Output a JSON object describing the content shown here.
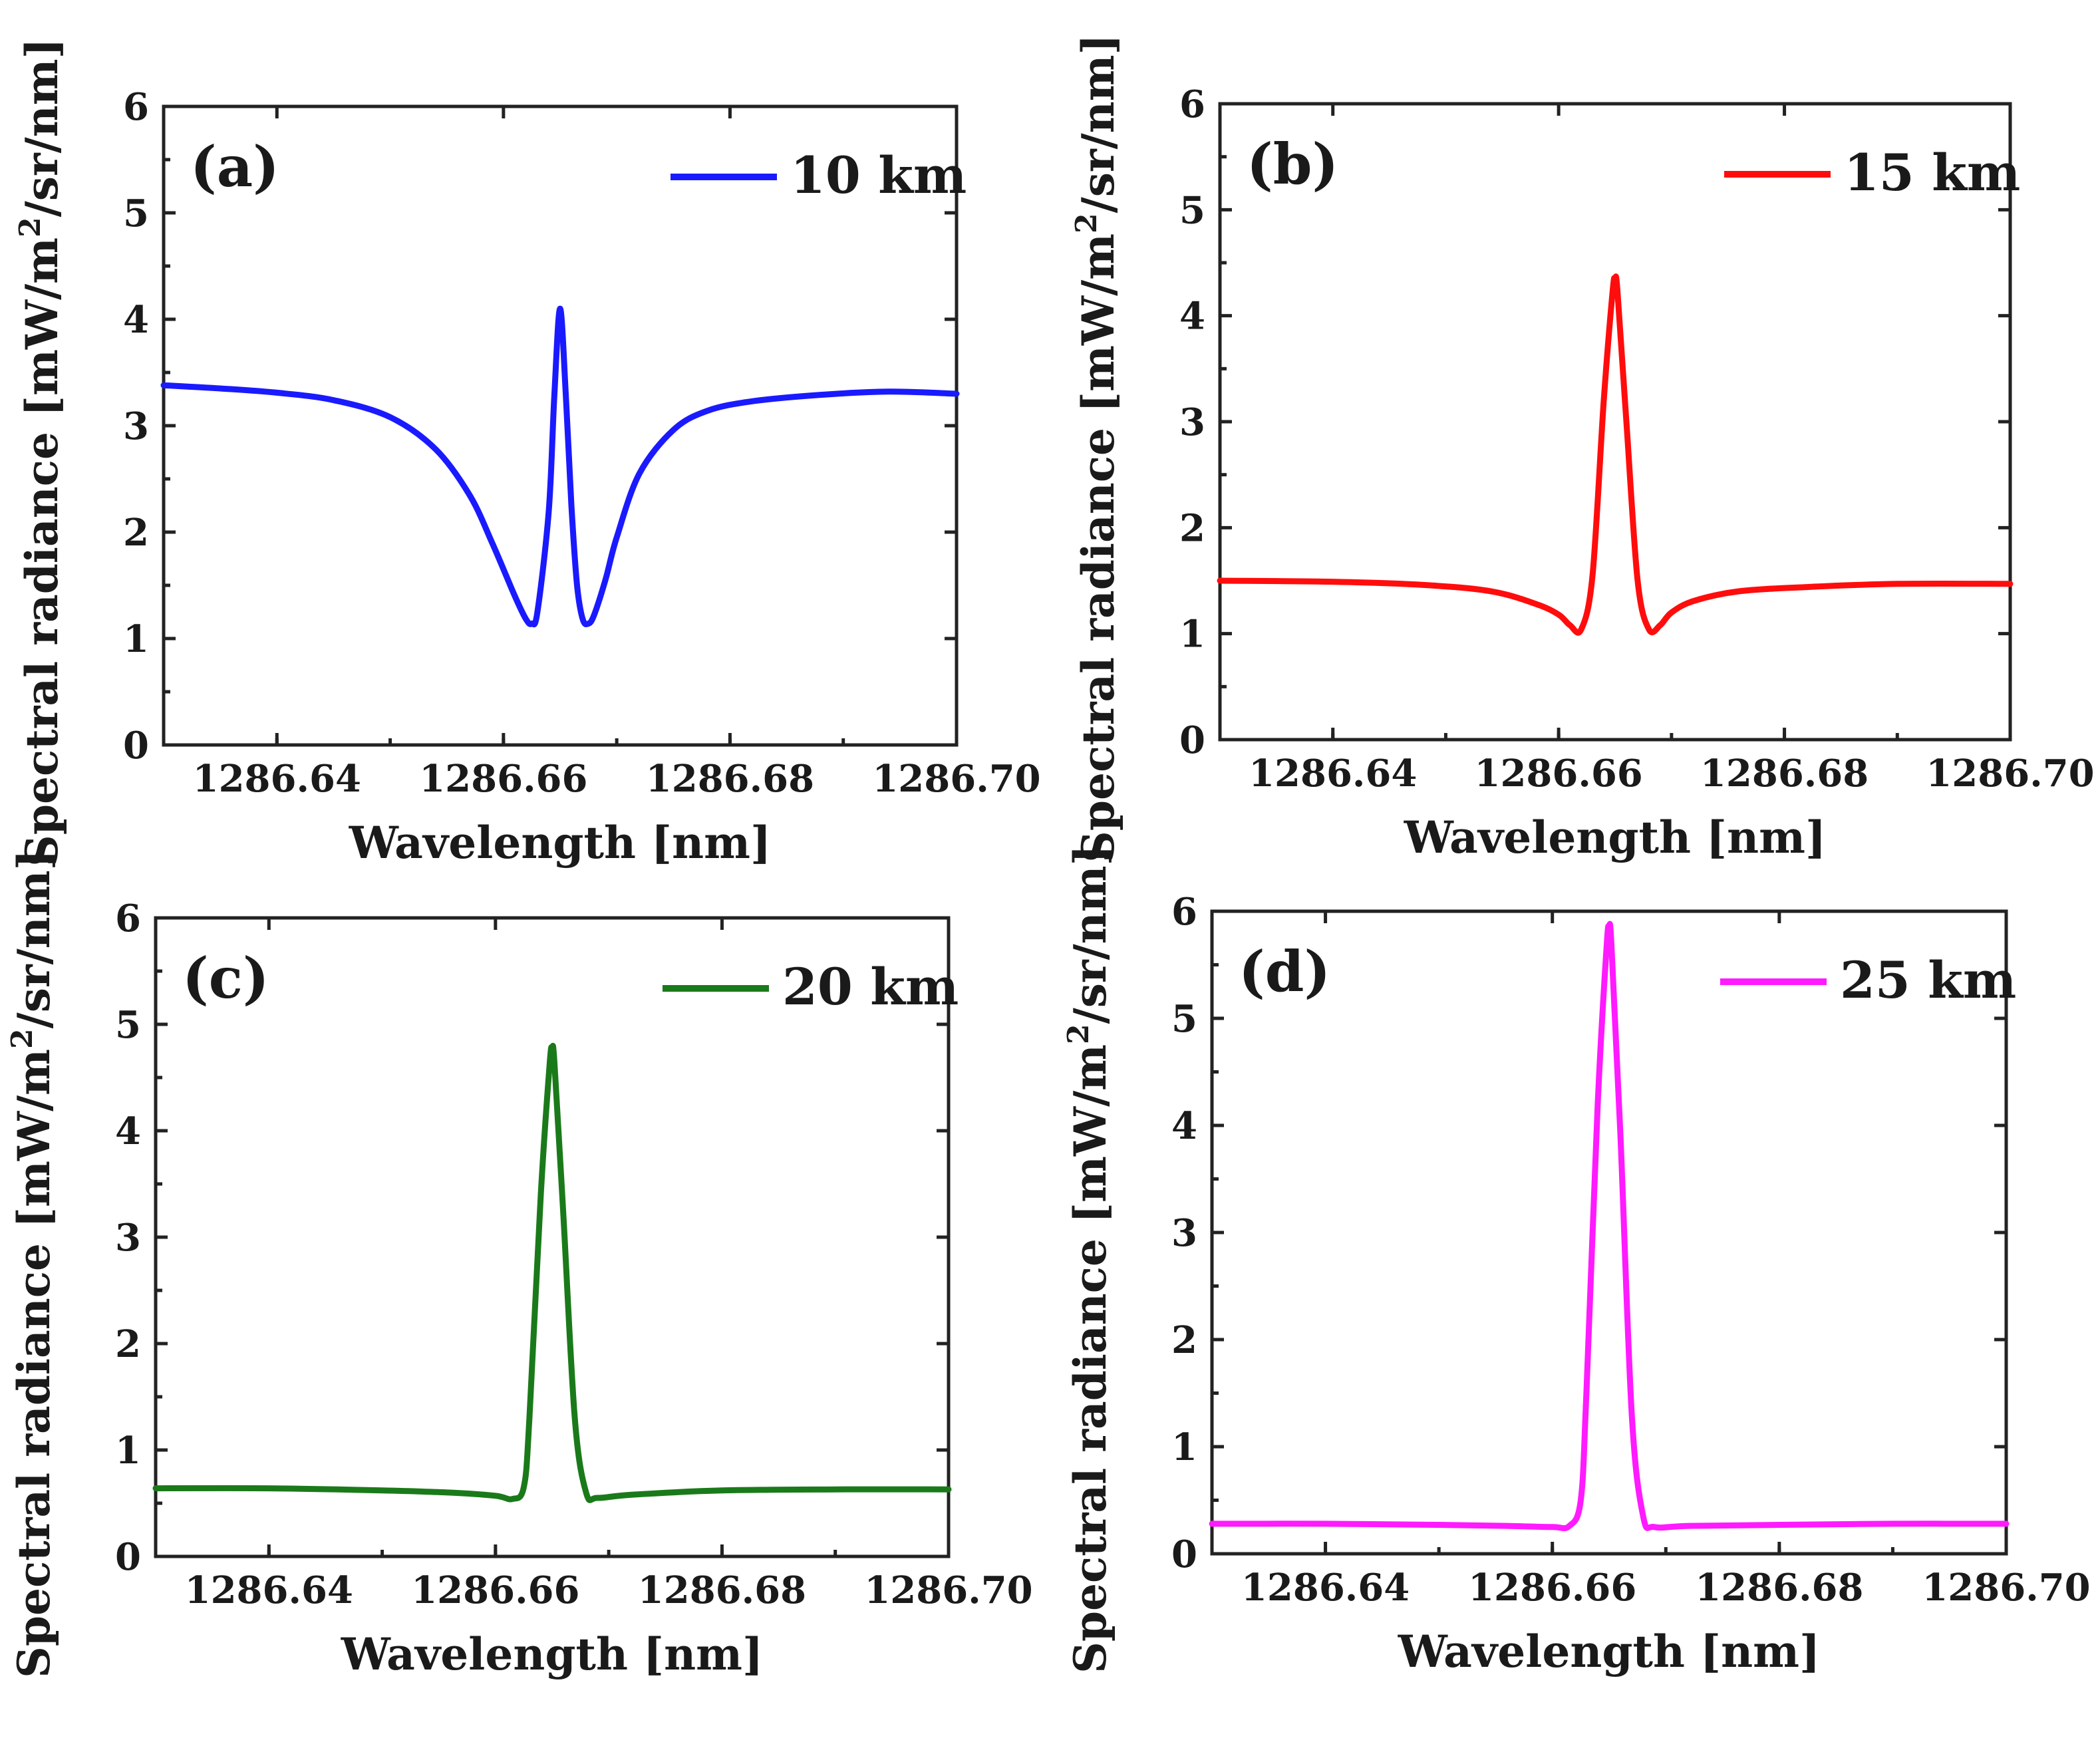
{
  "figure": {
    "panels": [
      "(a)",
      "(b)",
      "(c)",
      "(d)"
    ]
  },
  "chart_data": [
    {
      "type": "line",
      "panel_label": "(a)",
      "title": "",
      "xlabel": "Wavelength [nm]",
      "ylabel_main": "Spectral radiance [mW/m",
      "ylabel_sup": "2",
      "ylabel_tail": "/sr/nm]",
      "xlim": [
        1286.63,
        1286.7
      ],
      "ylim": [
        0,
        6
      ],
      "xticks": [
        "1286.64",
        "1286.66",
        "1286.68",
        "1286.70"
      ],
      "yticks": [
        "0",
        "1",
        "2",
        "3",
        "4",
        "5",
        "6"
      ],
      "legend_position": "top-right",
      "series": [
        {
          "name": "10 km",
          "color": "#1a1aff",
          "x": [
            1286.63,
            1286.635,
            1286.64,
            1286.645,
            1286.65,
            1286.654,
            1286.657,
            1286.659,
            1286.661,
            1286.662,
            1286.6625,
            1286.663,
            1286.664,
            1286.6645,
            1286.665,
            1286.6655,
            1286.666,
            1286.6665,
            1286.667,
            1286.6675,
            1286.668,
            1286.669,
            1286.67,
            1286.672,
            1286.675,
            1286.678,
            1286.682,
            1286.688,
            1286.694,
            1286.7
          ],
          "y": [
            3.38,
            3.35,
            3.31,
            3.24,
            3.08,
            2.78,
            2.35,
            1.9,
            1.4,
            1.18,
            1.14,
            1.25,
            2.2,
            3.3,
            4.1,
            3.3,
            2.25,
            1.5,
            1.18,
            1.14,
            1.22,
            1.55,
            1.95,
            2.55,
            2.96,
            3.14,
            3.23,
            3.29,
            3.32,
            3.3
          ]
        }
      ]
    },
    {
      "type": "line",
      "panel_label": "(b)",
      "title": "",
      "xlabel": "Wavelength [nm]",
      "ylabel_main": "Spectral radiance [mW/m",
      "ylabel_sup": "2",
      "ylabel_tail": "/sr/nm]",
      "xlim": [
        1286.63,
        1286.7
      ],
      "ylim": [
        0,
        6
      ],
      "xticks": [
        "1286.64",
        "1286.66",
        "1286.68",
        "1286.70"
      ],
      "yticks": [
        "0",
        "1",
        "2",
        "3",
        "4",
        "5",
        "6"
      ],
      "legend_position": "top-right",
      "series": [
        {
          "name": "15 km",
          "color": "#ff0d0d",
          "x": [
            1286.63,
            1286.64,
            1286.648,
            1286.654,
            1286.658,
            1286.66,
            1286.661,
            1286.662,
            1286.663,
            1286.664,
            1286.6648,
            1286.665,
            1286.6652,
            1286.666,
            1286.667,
            1286.668,
            1286.669,
            1286.67,
            1286.672,
            1286.676,
            1286.682,
            1286.69,
            1286.7
          ],
          "y": [
            1.5,
            1.49,
            1.46,
            1.4,
            1.28,
            1.18,
            1.08,
            1.04,
            1.55,
            3.2,
            4.25,
            4.32,
            4.25,
            3.0,
            1.5,
            1.04,
            1.08,
            1.2,
            1.31,
            1.4,
            1.44,
            1.47,
            1.47
          ]
        }
      ]
    },
    {
      "type": "line",
      "panel_label": "(c)",
      "title": "",
      "xlabel": "Wavelength [nm]",
      "ylabel_main": "Spectral radiance [mW/m",
      "ylabel_sup": "2",
      "ylabel_tail": "/sr/nm]",
      "xlim": [
        1286.63,
        1286.7
      ],
      "ylim": [
        0,
        6
      ],
      "xticks": [
        "1286.64",
        "1286.66",
        "1286.68",
        "1286.70"
      ],
      "yticks": [
        "0",
        "1",
        "2",
        "3",
        "4",
        "5",
        "6"
      ],
      "legend_position": "top-right",
      "series": [
        {
          "name": "20 km",
          "color": "#1a7a1a",
          "x": [
            1286.63,
            1286.64,
            1286.65,
            1286.656,
            1286.66,
            1286.6615,
            1286.6625,
            1286.663,
            1286.664,
            1286.6648,
            1286.665,
            1286.6652,
            1286.666,
            1286.667,
            1286.668,
            1286.669,
            1286.672,
            1286.68,
            1286.69,
            1286.7
          ],
          "y": [
            0.64,
            0.64,
            0.62,
            0.6,
            0.57,
            0.54,
            0.65,
            1.3,
            3.4,
            4.65,
            4.75,
            4.65,
            3.2,
            1.3,
            0.6,
            0.55,
            0.58,
            0.62,
            0.63,
            0.63
          ]
        }
      ]
    },
    {
      "type": "line",
      "panel_label": "(d)",
      "title": "",
      "xlabel": "Wavelength [nm]",
      "ylabel_main": "Spectral radiance [mW/m",
      "ylabel_sup": "2",
      "ylabel_tail": "/sr/nm]",
      "xlim": [
        1286.63,
        1286.7
      ],
      "ylim": [
        0,
        6
      ],
      "xticks": [
        "1286.64",
        "1286.66",
        "1286.68",
        "1286.70"
      ],
      "yticks": [
        "0",
        "1",
        "2",
        "3",
        "4",
        "5",
        "6"
      ],
      "legend_position": "top-right",
      "series": [
        {
          "name": "25 km",
          "color": "#ff1aff",
          "x": [
            1286.63,
            1286.64,
            1286.65,
            1286.656,
            1286.66,
            1286.6615,
            1286.6625,
            1286.663,
            1286.664,
            1286.6648,
            1286.665,
            1286.6652,
            1286.666,
            1286.667,
            1286.668,
            1286.669,
            1286.672,
            1286.68,
            1286.69,
            1286.7
          ],
          "y": [
            0.28,
            0.28,
            0.27,
            0.26,
            0.25,
            0.26,
            0.5,
            1.5,
            4.2,
            5.7,
            5.82,
            5.7,
            3.9,
            1.3,
            0.35,
            0.25,
            0.26,
            0.27,
            0.28,
            0.28
          ]
        }
      ]
    }
  ]
}
